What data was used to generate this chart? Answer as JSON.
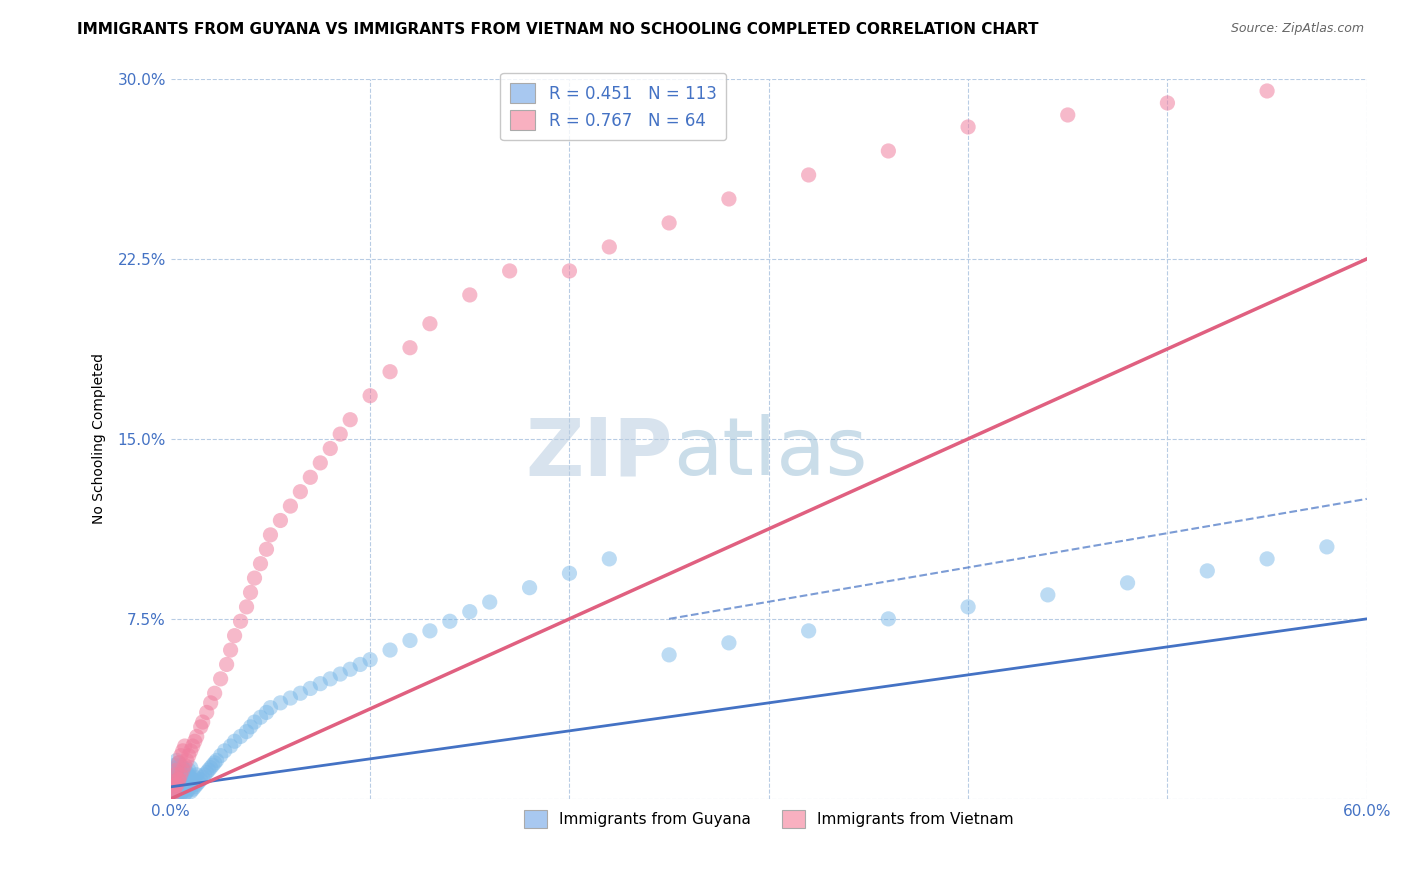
{
  "title": "IMMIGRANTS FROM GUYANA VS IMMIGRANTS FROM VIETNAM NO SCHOOLING COMPLETED CORRELATION CHART",
  "source": "Source: ZipAtlas.com",
  "ylabel": "No Schooling Completed",
  "xlim": [
    0.0,
    0.6
  ],
  "ylim": [
    0.0,
    0.3
  ],
  "xticks": [
    0.0,
    0.1,
    0.2,
    0.3,
    0.4,
    0.5,
    0.6
  ],
  "yticks": [
    0.0,
    0.075,
    0.15,
    0.225,
    0.3
  ],
  "ytick_labels": [
    "",
    "7.5%",
    "15.0%",
    "22.5%",
    "30.0%"
  ],
  "watermark_zip": "ZIP",
  "watermark_atlas": "atlas",
  "series": [
    {
      "label": "Immigrants from Guyana",
      "R": 0.451,
      "N": 113,
      "patch_color": "#a8c8f0",
      "dot_color": "#7ab8e8",
      "trend_color": "#4472c4",
      "trend_style": "solid"
    },
    {
      "label": "Immigrants from Vietnam",
      "R": 0.767,
      "N": 64,
      "patch_color": "#f8b0c0",
      "dot_color": "#f080a0",
      "trend_color": "#e06080",
      "trend_style": "solid"
    }
  ],
  "guyana_x": [
    0.001,
    0.001,
    0.001,
    0.002,
    0.002,
    0.002,
    0.002,
    0.002,
    0.003,
    0.003,
    0.003,
    0.003,
    0.003,
    0.003,
    0.004,
    0.004,
    0.004,
    0.004,
    0.004,
    0.005,
    0.005,
    0.005,
    0.005,
    0.005,
    0.006,
    0.006,
    0.006,
    0.006,
    0.007,
    0.007,
    0.007,
    0.007,
    0.008,
    0.008,
    0.008,
    0.009,
    0.009,
    0.009,
    0.01,
    0.01,
    0.01,
    0.01,
    0.011,
    0.011,
    0.012,
    0.012,
    0.013,
    0.013,
    0.014,
    0.015,
    0.016,
    0.017,
    0.018,
    0.019,
    0.02,
    0.021,
    0.022,
    0.023,
    0.025,
    0.027,
    0.03,
    0.032,
    0.035,
    0.038,
    0.04,
    0.042,
    0.045,
    0.048,
    0.05,
    0.055,
    0.06,
    0.065,
    0.07,
    0.075,
    0.08,
    0.085,
    0.09,
    0.095,
    0.1,
    0.11,
    0.12,
    0.13,
    0.14,
    0.15,
    0.16,
    0.18,
    0.2,
    0.22,
    0.25,
    0.28,
    0.32,
    0.36,
    0.4,
    0.44,
    0.48,
    0.52,
    0.55,
    0.58,
    0.001,
    0.001,
    0.002,
    0.002,
    0.003,
    0.003,
    0.004,
    0.004,
    0.005,
    0.005,
    0.006,
    0.007,
    0.008,
    0.009,
    0.01
  ],
  "guyana_y": [
    0.003,
    0.006,
    0.009,
    0.002,
    0.005,
    0.008,
    0.011,
    0.014,
    0.001,
    0.004,
    0.007,
    0.01,
    0.013,
    0.016,
    0.003,
    0.006,
    0.009,
    0.012,
    0.015,
    0.002,
    0.005,
    0.008,
    0.011,
    0.014,
    0.003,
    0.007,
    0.01,
    0.013,
    0.002,
    0.005,
    0.009,
    0.012,
    0.003,
    0.007,
    0.011,
    0.004,
    0.008,
    0.012,
    0.003,
    0.006,
    0.009,
    0.013,
    0.004,
    0.008,
    0.005,
    0.009,
    0.006,
    0.01,
    0.007,
    0.008,
    0.009,
    0.01,
    0.011,
    0.012,
    0.013,
    0.014,
    0.015,
    0.016,
    0.018,
    0.02,
    0.022,
    0.024,
    0.026,
    0.028,
    0.03,
    0.032,
    0.034,
    0.036,
    0.038,
    0.04,
    0.042,
    0.044,
    0.046,
    0.048,
    0.05,
    0.052,
    0.054,
    0.056,
    0.058,
    0.062,
    0.066,
    0.07,
    0.074,
    0.078,
    0.082,
    0.088,
    0.094,
    0.1,
    0.06,
    0.065,
    0.07,
    0.075,
    0.08,
    0.085,
    0.09,
    0.095,
    0.1,
    0.105,
    0.001,
    0.003,
    0.002,
    0.004,
    0.002,
    0.005,
    0.003,
    0.006,
    0.003,
    0.007,
    0.004,
    0.005,
    0.006,
    0.007,
    0.008
  ],
  "vietnam_x": [
    0.001,
    0.001,
    0.002,
    0.002,
    0.003,
    0.003,
    0.004,
    0.004,
    0.005,
    0.005,
    0.006,
    0.006,
    0.007,
    0.007,
    0.008,
    0.009,
    0.01,
    0.011,
    0.012,
    0.013,
    0.015,
    0.016,
    0.018,
    0.02,
    0.022,
    0.025,
    0.028,
    0.03,
    0.032,
    0.035,
    0.038,
    0.04,
    0.042,
    0.045,
    0.048,
    0.05,
    0.055,
    0.06,
    0.065,
    0.07,
    0.075,
    0.08,
    0.085,
    0.09,
    0.1,
    0.11,
    0.12,
    0.13,
    0.15,
    0.17,
    0.2,
    0.22,
    0.25,
    0.28,
    0.32,
    0.36,
    0.4,
    0.45,
    0.5,
    0.55,
    0.001,
    0.002,
    0.003,
    0.004
  ],
  "vietnam_y": [
    0.003,
    0.007,
    0.005,
    0.01,
    0.006,
    0.012,
    0.008,
    0.015,
    0.01,
    0.018,
    0.012,
    0.02,
    0.014,
    0.022,
    0.016,
    0.018,
    0.02,
    0.022,
    0.024,
    0.026,
    0.03,
    0.032,
    0.036,
    0.04,
    0.044,
    0.05,
    0.056,
    0.062,
    0.068,
    0.074,
    0.08,
    0.086,
    0.092,
    0.098,
    0.104,
    0.11,
    0.116,
    0.122,
    0.128,
    0.134,
    0.14,
    0.146,
    0.152,
    0.158,
    0.168,
    0.178,
    0.188,
    0.198,
    0.21,
    0.22,
    0.22,
    0.23,
    0.24,
    0.25,
    0.26,
    0.27,
    0.28,
    0.285,
    0.29,
    0.295,
    0.002,
    0.004,
    0.006,
    0.008
  ],
  "guyana_trend": [
    0.0,
    0.6,
    0.005,
    0.075
  ],
  "guyana_dashed": [
    0.25,
    0.6,
    0.075,
    0.125
  ],
  "vietnam_trend": [
    0.0,
    0.6,
    0.0,
    0.225
  ],
  "background_color": "#ffffff",
  "grid_color": "#b8cce4",
  "axis_color": "#4472c4",
  "title_fontsize": 11,
  "label_fontsize": 10,
  "tick_fontsize": 11
}
